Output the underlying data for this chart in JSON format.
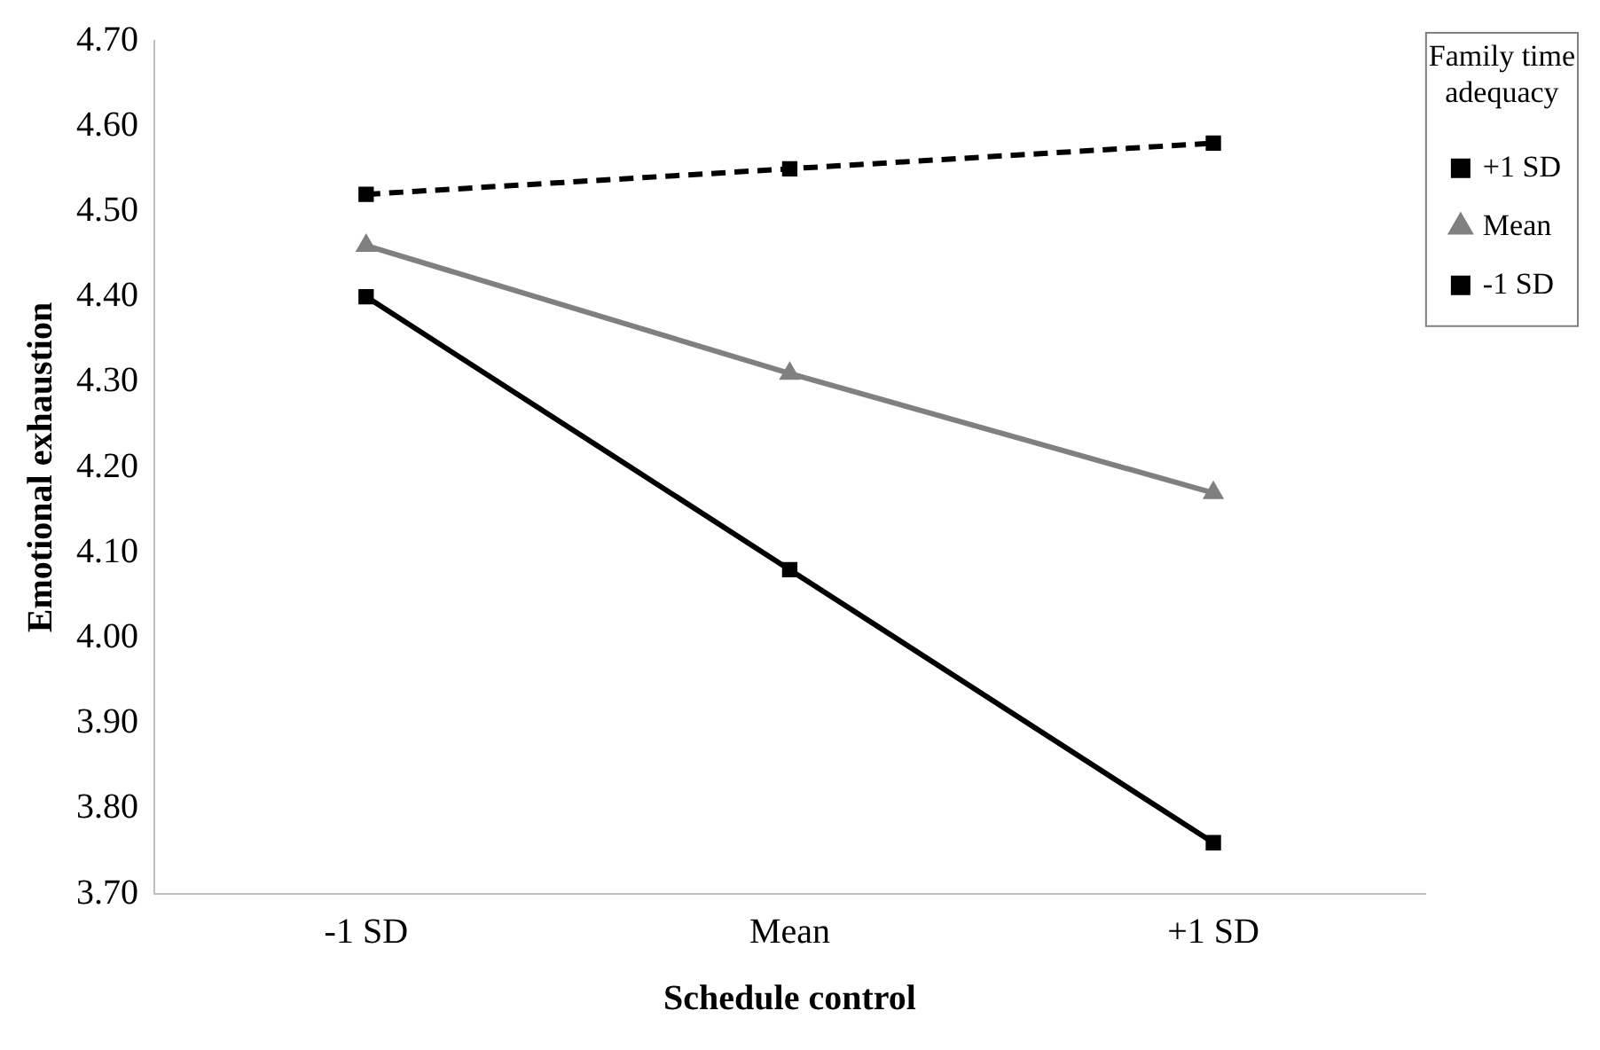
{
  "chart_data": {
    "type": "line",
    "xlabel": "Schedule control",
    "ylabel": "Emotional exhaustion",
    "legend_title": "Family time adequacy",
    "categories": [
      "-1 SD",
      "Mean",
      "+1 SD"
    ],
    "series": [
      {
        "name": "+1 SD",
        "color": "#000000",
        "values": [
          4.4,
          4.08,
          3.76
        ],
        "marker": "square",
        "line_style": "solid"
      },
      {
        "name": "Mean",
        "color": "#808080",
        "values": [
          4.46,
          4.31,
          4.17
        ],
        "marker": "triangle",
        "line_style": "solid"
      },
      {
        "name": "-1 SD",
        "color": "#000000",
        "values": [
          4.52,
          4.55,
          4.58
        ],
        "marker": "square",
        "line_style": "dashed"
      }
    ],
    "ylim": [
      3.7,
      4.7
    ],
    "yticks": [
      {
        "value": 3.7,
        "label": "3.70"
      },
      {
        "value": 3.8,
        "label": "3.80"
      },
      {
        "value": 3.9,
        "label": "3.90"
      },
      {
        "value": 4.0,
        "label": "4.00"
      },
      {
        "value": 4.1,
        "label": "4.10"
      },
      {
        "value": 4.2,
        "label": "4.20"
      },
      {
        "value": 4.3,
        "label": "4.30"
      },
      {
        "value": 4.4,
        "label": "4.40"
      },
      {
        "value": 4.5,
        "label": "4.50"
      },
      {
        "value": 4.6,
        "label": "4.60"
      },
      {
        "value": 4.7,
        "label": "4.70"
      }
    ],
    "grid": false,
    "legend": "top right"
  }
}
